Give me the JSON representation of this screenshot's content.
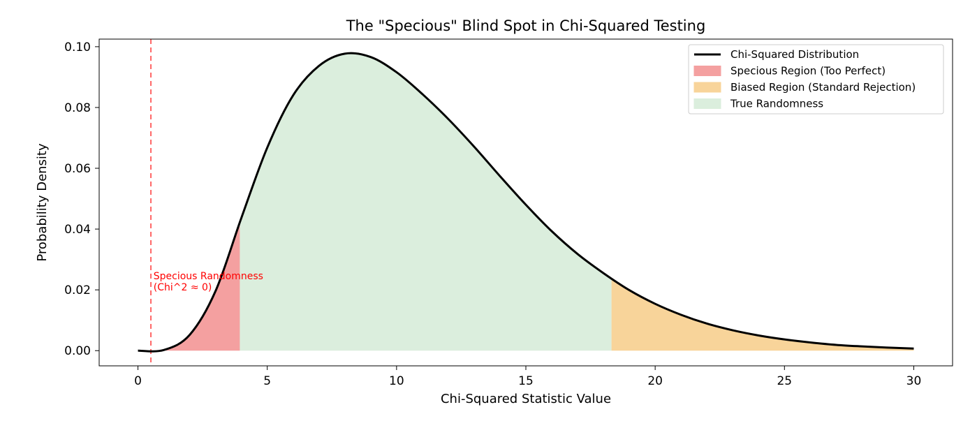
{
  "chart_data": {
    "type": "area",
    "title": "The \"Specious\" Blind Spot in Chi-Squared Testing",
    "xlabel": "Chi-Squared Statistic Value",
    "ylabel": "Probability Density",
    "xlim": [
      -1.5,
      31.5
    ],
    "ylim": [
      -0.005,
      0.1025
    ],
    "x_ticks": [
      0,
      5,
      10,
      15,
      20,
      25,
      30
    ],
    "x_tick_labels": [
      "0",
      "5",
      "10",
      "15",
      "20",
      "25",
      "30"
    ],
    "y_ticks": [
      0.0,
      0.02,
      0.04,
      0.06,
      0.08,
      0.1
    ],
    "y_tick_labels": [
      "0.00",
      "0.02",
      "0.04",
      "0.06",
      "0.08",
      "0.10"
    ],
    "grid": false,
    "legend_position": "top-right",
    "colors": {
      "curve": "#000000",
      "specious": "#f4a0a0",
      "biased": "#f8d49a",
      "true_randomness": "#dbeedd",
      "annotation": "#ff0000",
      "dashed_line": "#ff6666"
    },
    "curve": {
      "name": "Chi-Squared Distribution",
      "x": [
        0,
        1,
        2,
        3,
        4,
        5,
        6,
        7,
        8,
        9,
        10,
        11,
        12,
        13,
        14,
        15,
        16,
        17,
        18,
        19,
        20,
        21,
        22,
        23,
        24,
        25,
        26,
        27,
        28,
        29,
        30
      ],
      "y": [
        0.0,
        0.0002,
        0.0052,
        0.0196,
        0.0437,
        0.0668,
        0.084,
        0.0937,
        0.0977,
        0.0966,
        0.0916,
        0.0844,
        0.0762,
        0.0671,
        0.0574,
        0.048,
        0.0393,
        0.0318,
        0.0255,
        0.0199,
        0.0154,
        0.0118,
        0.0089,
        0.0067,
        0.005,
        0.0037,
        0.0027,
        0.0019,
        0.0014,
        0.001,
        0.0007
      ]
    },
    "regions": [
      {
        "name": "Specious Region (Too Perfect)",
        "x_start": 0,
        "x_end": 3.94,
        "color": "#f4a0a0"
      },
      {
        "name": "Biased Region (Standard Rejection)",
        "x_start": 18.31,
        "x_end": 30,
        "color": "#f8d49a"
      },
      {
        "name": "True Randomness",
        "x_start": 3.94,
        "x_end": 18.31,
        "color": "#dbeedd"
      }
    ],
    "vline": {
      "x": 0.5
    },
    "annotation": {
      "line1": "Specious Randomness",
      "line2": "(Chi^2 ≈ 0)",
      "x": 0.6,
      "y": 0.0235
    },
    "legend": [
      {
        "label": "Chi-Squared Distribution",
        "kind": "line",
        "color": "#000000"
      },
      {
        "label": "Specious Region (Too Perfect)",
        "kind": "patch",
        "color": "#f4a0a0"
      },
      {
        "label": "Biased Region (Standard Rejection)",
        "kind": "patch",
        "color": "#f8d49a"
      },
      {
        "label": "True Randomness",
        "kind": "patch",
        "color": "#dbeedd"
      }
    ]
  }
}
